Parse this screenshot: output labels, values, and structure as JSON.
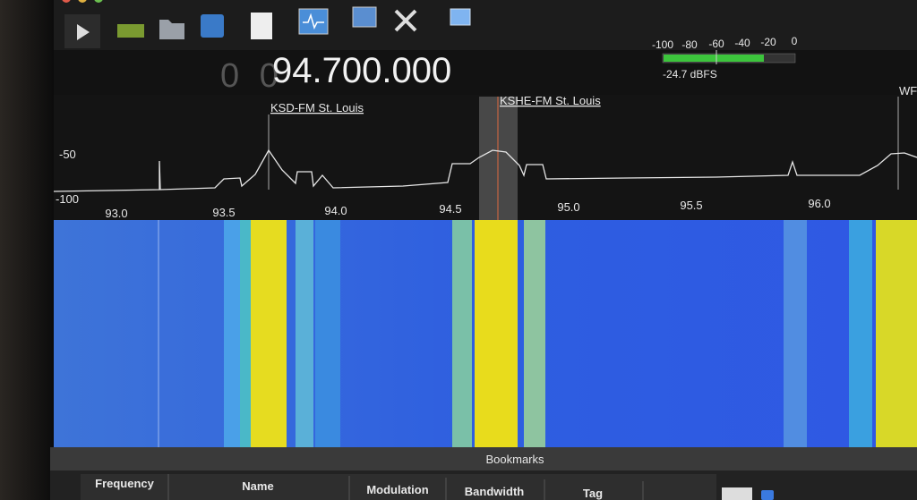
{
  "frequency": {
    "leading": "0 0",
    "value": "94.700.000"
  },
  "meter": {
    "scale": [
      "-100",
      "-80",
      "-60",
      "-40",
      "-20",
      "0"
    ],
    "reading": "-24.7 dBFS"
  },
  "spectrum": {
    "levels": [
      "-50",
      "-100"
    ],
    "frequencies": [
      "93.0",
      "93.5",
      "94.0",
      "94.5",
      "95.0",
      "95.5",
      "96.0"
    ],
    "stations": [
      "KSD-FM St. Louis",
      "KSHE-FM St. Louis",
      "WF"
    ]
  },
  "bookmarks": {
    "title": "Bookmarks",
    "columns": [
      "Frequency",
      "Name",
      "Modulation",
      "Bandwidth",
      "Tag"
    ]
  }
}
